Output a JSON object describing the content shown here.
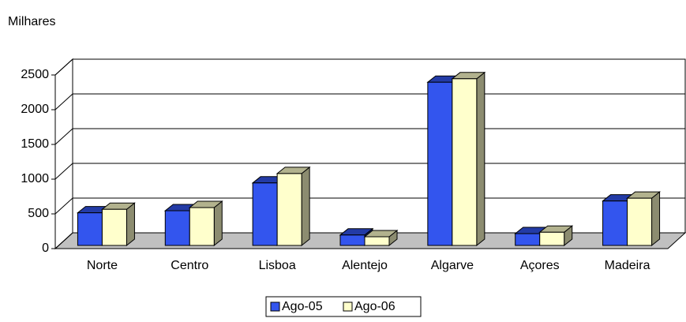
{
  "chart_data": {
    "type": "bar3d",
    "y_label": "Milhares",
    "categories": [
      "Norte",
      "Centro",
      "Lisboa",
      "Alentejo",
      "Algarve",
      "Açores",
      "Madeira"
    ],
    "series": [
      {
        "name": "Ago-05",
        "color": "#3355ee",
        "values": [
          470,
          500,
          900,
          150,
          2350,
          170,
          640
        ]
      },
      {
        "name": "Ago-06",
        "color": "#ffffcc",
        "values": [
          520,
          545,
          1035,
          125,
          2400,
          190,
          680
        ]
      }
    ],
    "ylim": [
      0,
      2500
    ],
    "yticks": [
      0,
      500,
      1000,
      1500,
      2000,
      2500
    ],
    "grid": true,
    "legend": "bottom"
  }
}
